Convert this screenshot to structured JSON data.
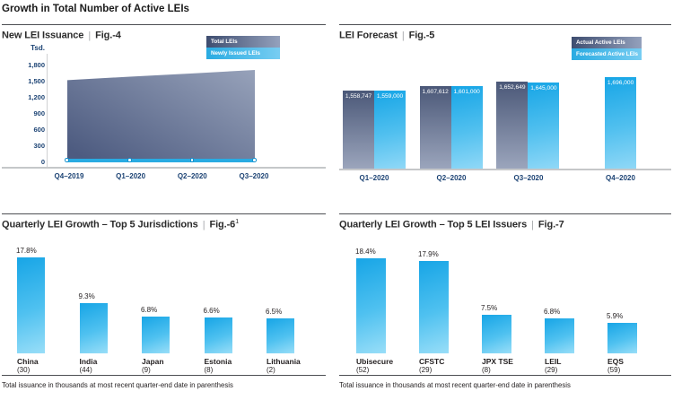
{
  "page_title": "Growth in Total Number of Active LEIs",
  "separator": "|",
  "colors": {
    "primary_blue": "#29abe2",
    "slate_dark": "#4b5878",
    "navy_text": "#1c4374",
    "body_text": "#231f20"
  },
  "chart_data": [
    {
      "id": "fig4",
      "type": "area",
      "title": "New LEI Issuance",
      "fig": "Fig.-4",
      "sup": "",
      "legend": [
        "Total LEIs",
        "Newly Issued LEIs"
      ],
      "y_unit": "Tsd.",
      "ylim": [
        0,
        1800
      ],
      "ytick_labels": [
        "1,800",
        "1,500",
        "1,200",
        "900",
        "600",
        "300",
        "0"
      ],
      "categories": [
        "Q4–2019",
        "Q1–2020",
        "Q2–2020",
        "Q3–2020"
      ],
      "series": [
        {
          "name": "Total LEIs",
          "type": "area",
          "values_tsd": [
            1530,
            1595,
            1655,
            1720
          ]
        },
        {
          "name": "Newly Issued LEIs",
          "type": "line",
          "values_tsd": [
            35,
            35,
            35,
            35
          ]
        }
      ]
    },
    {
      "id": "fig5",
      "type": "bar",
      "title": "LEI Forecast",
      "fig": "Fig.-5",
      "sup": "",
      "legend": [
        "Actual Active LEIs",
        "Forecasted Active LEIs"
      ],
      "categories": [
        "Q1–2020",
        "Q2–2020",
        "Q3–2020",
        "Q4–2020"
      ],
      "series": [
        {
          "name": "Actual Active LEIs",
          "values": [
            1558747,
            1607612,
            1652649,
            null
          ],
          "labels": [
            "1,558,747",
            "1,607,612",
            "1,652,649",
            null
          ]
        },
        {
          "name": "Forecasted Active LEIs",
          "values": [
            1559000,
            1601000,
            1645000,
            1696000
          ],
          "labels": [
            "1,559,000",
            "1,601,000",
            "1,645,000",
            "1,696,000"
          ]
        }
      ]
    },
    {
      "id": "fig6",
      "type": "bar",
      "title": "Quarterly LEI Growth – Top 5 Jurisdictions",
      "fig": "Fig.-6",
      "sup": "1",
      "categories": [
        "China",
        "India",
        "Japan",
        "Estonia",
        "Lithuania"
      ],
      "category_sub": [
        "(30)",
        "(44)",
        "(9)",
        "(8)",
        "(2)"
      ],
      "values_pct": [
        17.8,
        9.3,
        6.8,
        6.6,
        6.5
      ],
      "value_labels": [
        "17.8%",
        "9.3%",
        "6.8%",
        "6.6%",
        "6.5%"
      ],
      "footnote": "Total issuance in thousands at most recent quarter-end date in parenthesis"
    },
    {
      "id": "fig7",
      "type": "bar",
      "title": "Quarterly LEI Growth – Top 5 LEI Issuers",
      "fig": "Fig.-7",
      "sup": "",
      "categories": [
        "Ubisecure",
        "CFSTC",
        "JPX TSE",
        "LEIL",
        "EQS"
      ],
      "category_sub": [
        "(52)",
        "(29)",
        "(8)",
        "(29)",
        "(59)"
      ],
      "values_pct": [
        18.4,
        17.9,
        7.5,
        6.8,
        5.9
      ],
      "value_labels": [
        "18.4%",
        "17.9%",
        "7.5%",
        "6.8%",
        "5.9%"
      ],
      "footnote": "Total issuance in thousands at most recent quarter-end date in parenthesis"
    }
  ]
}
